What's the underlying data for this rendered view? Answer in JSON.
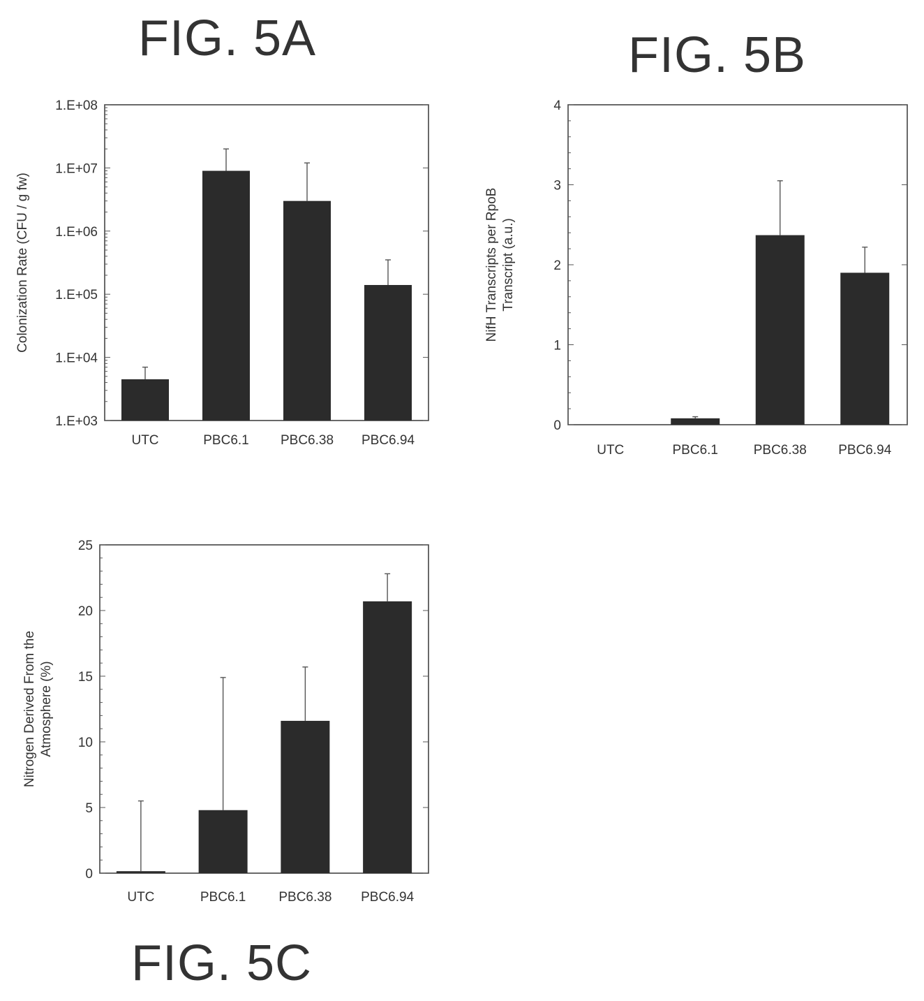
{
  "figures": {
    "a_title": "FIG. 5A",
    "b_title": "FIG. 5B",
    "c_title": "FIG. 5C"
  },
  "chart_data": [
    {
      "id": "fig5a",
      "type": "bar",
      "title": "FIG. 5A",
      "xlabel": "",
      "ylabel": "Colonization Rate (CFU / g fw)",
      "categories": [
        "UTC",
        "PBC6.1",
        "PBC6.38",
        "PBC6.94"
      ],
      "values": [
        4500,
        9000000,
        3000000,
        140000
      ],
      "error_upper": [
        7000,
        20000000,
        12000000,
        350000
      ],
      "y_scale": "log",
      "ylim": [
        1000,
        100000000
      ],
      "yticks": [
        1000,
        10000,
        100000,
        1000000,
        10000000,
        100000000
      ],
      "ytick_labels": [
        "1.E+03",
        "1.E+04",
        "1.E+05",
        "1.E+06",
        "1.E+07",
        "1.E+08"
      ],
      "grid": false
    },
    {
      "id": "fig5b",
      "type": "bar",
      "title": "FIG. 5B",
      "xlabel": "",
      "ylabel_lines": [
        "NifH Transcripts per RpoB",
        "Transcript (a.u.)"
      ],
      "categories": [
        "UTC",
        "PBC6.1",
        "PBC6.38",
        "PBC6.94"
      ],
      "values": [
        0,
        0.08,
        2.37,
        1.9
      ],
      "error_upper": [
        0,
        0.1,
        3.05,
        2.22
      ],
      "ylim": [
        0,
        4
      ],
      "yticks": [
        0,
        1,
        2,
        3,
        4
      ],
      "ytick_labels": [
        "0",
        "1",
        "2",
        "3",
        "4"
      ],
      "grid": false
    },
    {
      "id": "fig5c",
      "type": "bar",
      "title": "FIG. 5C",
      "xlabel": "",
      "ylabel_lines": [
        "Nitrogen Derived From the",
        "Atmosphere (%)"
      ],
      "categories": [
        "UTC",
        "PBC6.1",
        "PBC6.38",
        "PBC6.94"
      ],
      "values": [
        0.15,
        4.8,
        11.6,
        20.7
      ],
      "error_upper": [
        5.5,
        14.9,
        15.7,
        22.8
      ],
      "ylim": [
        0,
        25
      ],
      "yticks": [
        0,
        5,
        10,
        15,
        20,
        25
      ],
      "ytick_labels": [
        "0",
        "5",
        "10",
        "15",
        "20",
        "25"
      ],
      "grid": false
    }
  ]
}
